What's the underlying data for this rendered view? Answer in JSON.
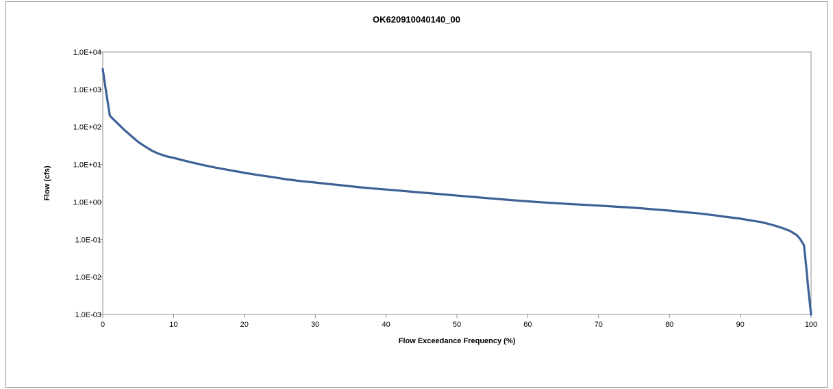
{
  "chart_data": {
    "type": "line",
    "title": "OK620910040140_00",
    "xlabel": "Flow Exceedance Frequency (%)",
    "ylabel": "Flow (cfs)",
    "xlim": [
      0,
      100
    ],
    "ylim": [
      0.001,
      10000
    ],
    "yscale": "log",
    "grid": false,
    "legend": "none",
    "x_ticks": [
      0,
      10,
      20,
      30,
      40,
      50,
      60,
      70,
      80,
      90,
      100
    ],
    "x_tick_labels": [
      "0",
      "10",
      "20",
      "30",
      "40",
      "50",
      "60",
      "70",
      "80",
      "90",
      "100"
    ],
    "y_ticks": [
      0.001,
      0.01,
      0.1,
      1,
      10,
      100,
      1000,
      10000
    ],
    "y_tick_labels": [
      "1.0E-03",
      "1.0E-02",
      "1.0E-01",
      "1.0E+00",
      "1.0E+01",
      "1.0E+02",
      "1.0E+03",
      "1.0E+04"
    ],
    "line_color": "#3c6194",
    "series": [
      {
        "x": [
          0,
          0.5,
          1,
          1.5,
          2,
          3,
          4,
          5,
          6,
          7,
          8,
          9,
          10,
          12,
          14,
          16,
          18,
          20,
          22,
          24,
          26,
          28,
          30,
          32,
          34,
          36,
          38,
          40,
          42,
          44,
          46,
          48,
          50,
          52,
          54,
          56,
          58,
          60,
          62,
          64,
          66,
          68,
          70,
          72,
          74,
          76,
          78,
          80,
          82,
          84,
          86,
          88,
          90,
          92,
          93,
          94,
          95,
          96,
          97,
          98,
          98.5,
          99,
          99.3,
          99.6,
          100
        ],
        "y": [
          3500,
          800,
          200,
          160,
          130,
          85,
          58,
          40,
          30,
          23,
          19,
          16.5,
          15,
          12,
          9.8,
          8.2,
          7,
          6,
          5.2,
          4.6,
          4,
          3.6,
          3.3,
          3,
          2.75,
          2.5,
          2.3,
          2.15,
          2,
          1.85,
          1.72,
          1.6,
          1.48,
          1.38,
          1.28,
          1.19,
          1.11,
          1.04,
          0.98,
          0.93,
          0.88,
          0.84,
          0.8,
          0.76,
          0.72,
          0.68,
          0.63,
          0.59,
          0.54,
          0.5,
          0.45,
          0.4,
          0.36,
          0.31,
          0.29,
          0.26,
          0.23,
          0.2,
          0.17,
          0.13,
          0.1,
          0.07,
          0.02,
          0.005,
          0.001
        ]
      }
    ]
  }
}
